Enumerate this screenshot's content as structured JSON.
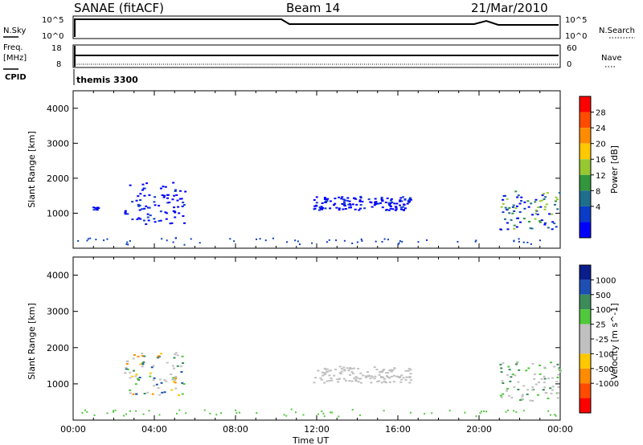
{
  "header": {
    "station": "SANAE (fitACF)",
    "beam": "Beam 14",
    "date": "21/Mar/2010"
  },
  "strips": {
    "nsky_label": "N.Sky",
    "nsky_ticks": [
      "10^5",
      "10^0"
    ],
    "nsearch_label": "N.Search",
    "nsearch_ticks": [
      "10^5",
      "10^0"
    ],
    "freq_label": "Freq.",
    "freq_unit": "[MHz]",
    "freq_ticks": [
      "18",
      "8"
    ],
    "nave_label": "Nave",
    "nave_ticks": [
      "60",
      "0"
    ],
    "cpid_label": "CPID",
    "cpid_value": "themis 3300"
  },
  "chart_data": [
    {
      "type": "scatter",
      "panel": "power",
      "ylabel": "Slant Range [km]",
      "xlabel": "",
      "ylim": [
        0,
        4500
      ],
      "yticks": [
        "4000",
        "3000",
        "2000",
        "1000"
      ],
      "colorbar_label": "Power [dB]",
      "colorbar_ticks": [
        "28",
        "24",
        "20",
        "16",
        "12",
        "8",
        "4"
      ],
      "colorbar_colors": [
        "#ff0000",
        "#ff4b00",
        "#ff8c00",
        "#ffc800",
        "#96c832",
        "#32963c",
        "#1e6e8c",
        "#0a3cc8",
        "#0000ff"
      ],
      "clusters": [
        {
          "t": [
            0.9,
            1.2
          ],
          "r": [
            1100,
            1200
          ],
          "level": "4"
        },
        {
          "t": [
            2.5,
            5.5
          ],
          "r": [
            700,
            1900
          ],
          "level": "4"
        },
        {
          "t": [
            11.8,
            16.6
          ],
          "r": [
            1100,
            1500
          ],
          "level": "4"
        },
        {
          "t": [
            21.0,
            24.0
          ],
          "r": [
            550,
            1650
          ],
          "level": "4-20"
        }
      ]
    },
    {
      "type": "scatter",
      "panel": "velocity",
      "ylabel": "Slant Range [km]",
      "xlabel": "Time UT",
      "ylim": [
        0,
        4500
      ],
      "yticks": [
        "4000",
        "3000",
        "2000",
        "1000"
      ],
      "xticks": [
        "00:00",
        "04:00",
        "08:00",
        "12:00",
        "16:00",
        "20:00",
        "00:00"
      ],
      "colorbar_label": "Velocity [m s^-1]",
      "colorbar_ticks": [
        "1000",
        "500",
        "100",
        "25",
        "-25",
        "-100",
        "-500",
        "-1000"
      ],
      "colorbar_colors": [
        "#0a1e8c",
        "#1e50b4",
        "#3c8c5a",
        "#50c83c",
        "#c0c0c0",
        "#c0c0c0",
        "#ffc800",
        "#ff8c00",
        "#ff4b00",
        "#ff0000"
      ],
      "clusters": [
        {
          "t": [
            2.5,
            5.5
          ],
          "r": [
            700,
            1900
          ],
          "level": "mixed"
        },
        {
          "t": [
            11.8,
            16.6
          ],
          "r": [
            1050,
            1500
          ],
          "level": "25 to -25"
        },
        {
          "t": [
            21.0,
            24.0
          ],
          "r": [
            550,
            1650
          ],
          "level": "100 to -100"
        }
      ]
    }
  ]
}
